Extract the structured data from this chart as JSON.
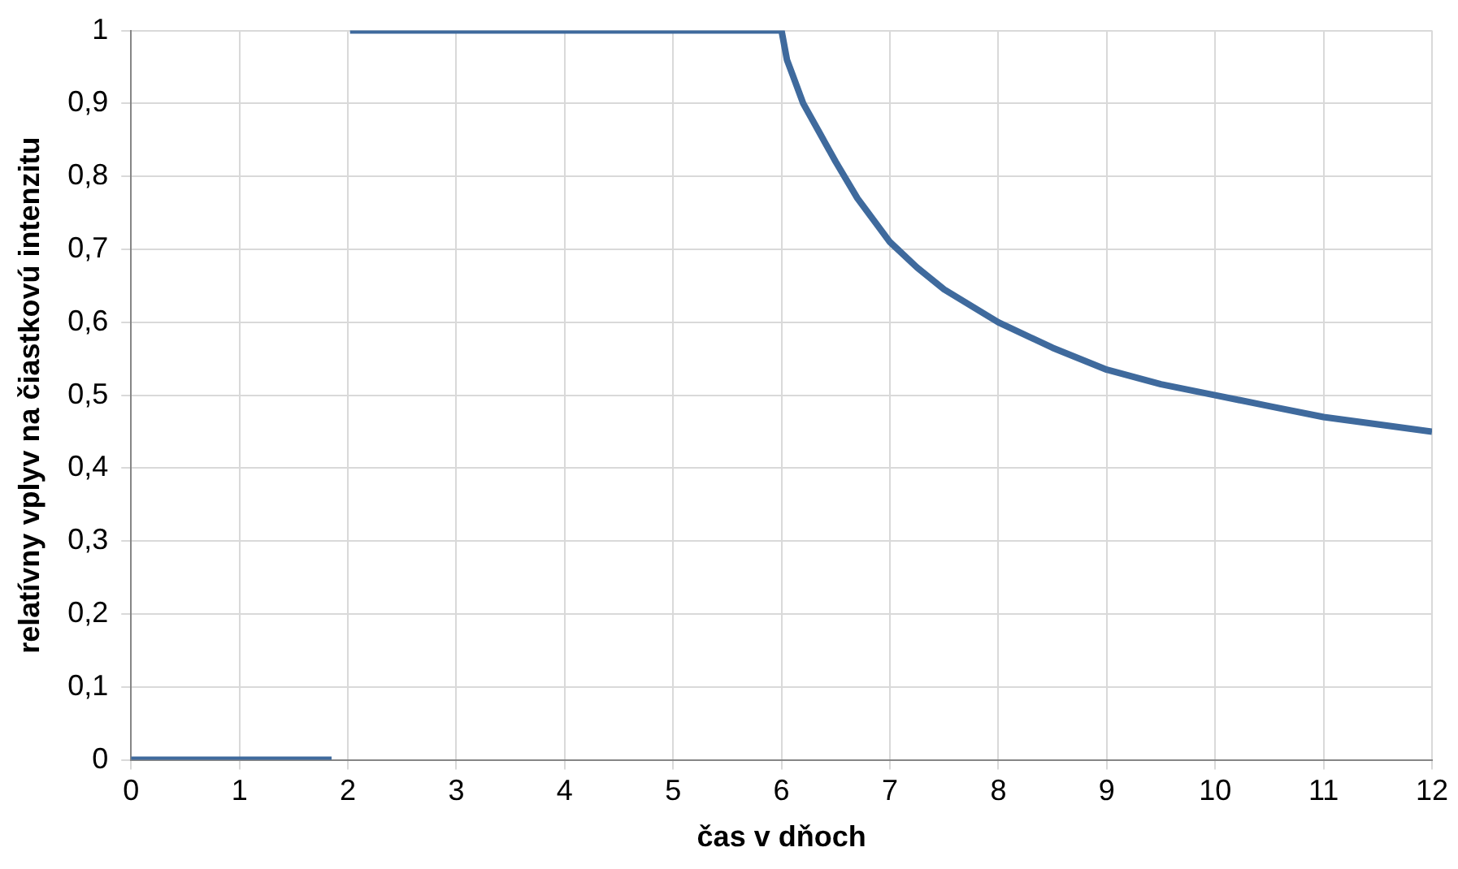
{
  "chart_data": {
    "type": "line",
    "xlabel": "čas v dňoch",
    "ylabel": "relatívny vplyv na čiastkovú intenzitu",
    "x": [
      0,
      1.85,
      1.93,
      2.02,
      6.0,
      6.05,
      6.1,
      6.2,
      6.35,
      6.5,
      6.7,
      7,
      7.25,
      7.5,
      8,
      8.5,
      9,
      9.5,
      10,
      10.5,
      11,
      11.5,
      12
    ],
    "series": [
      {
        "color": "#3f6a9d",
        "values": [
          0,
          0,
          null,
          1,
          1,
          0.96,
          0.94,
          0.9,
          0.86,
          0.82,
          0.77,
          0.71,
          0.675,
          0.645,
          0.6,
          0.565,
          0.535,
          0.515,
          0.5,
          0.485,
          0.47,
          0.46,
          0.45
        ]
      }
    ],
    "xlim": [
      0,
      12
    ],
    "xticks": [
      0,
      1,
      2,
      3,
      4,
      5,
      6,
      7,
      8,
      9,
      10,
      11,
      12
    ],
    "ylim": [
      0,
      1
    ],
    "yticks": [
      0,
      {
        "value": 0.1,
        "label": "0,1"
      },
      {
        "value": 0.2,
        "label": "0,2"
      },
      {
        "value": 0.3,
        "label": "0,3"
      },
      {
        "value": 0.4,
        "label": "0,4"
      },
      {
        "value": 0.5,
        "label": "0,5"
      },
      {
        "value": 0.6,
        "label": "0,6"
      },
      {
        "value": 0.7,
        "label": "0,7"
      },
      {
        "value": 0.8,
        "label": "0,8"
      },
      {
        "value": 0.9,
        "label": "0,9"
      },
      1
    ],
    "grid": true,
    "legend": false,
    "marker": "none",
    "line_style": "solid"
  }
}
